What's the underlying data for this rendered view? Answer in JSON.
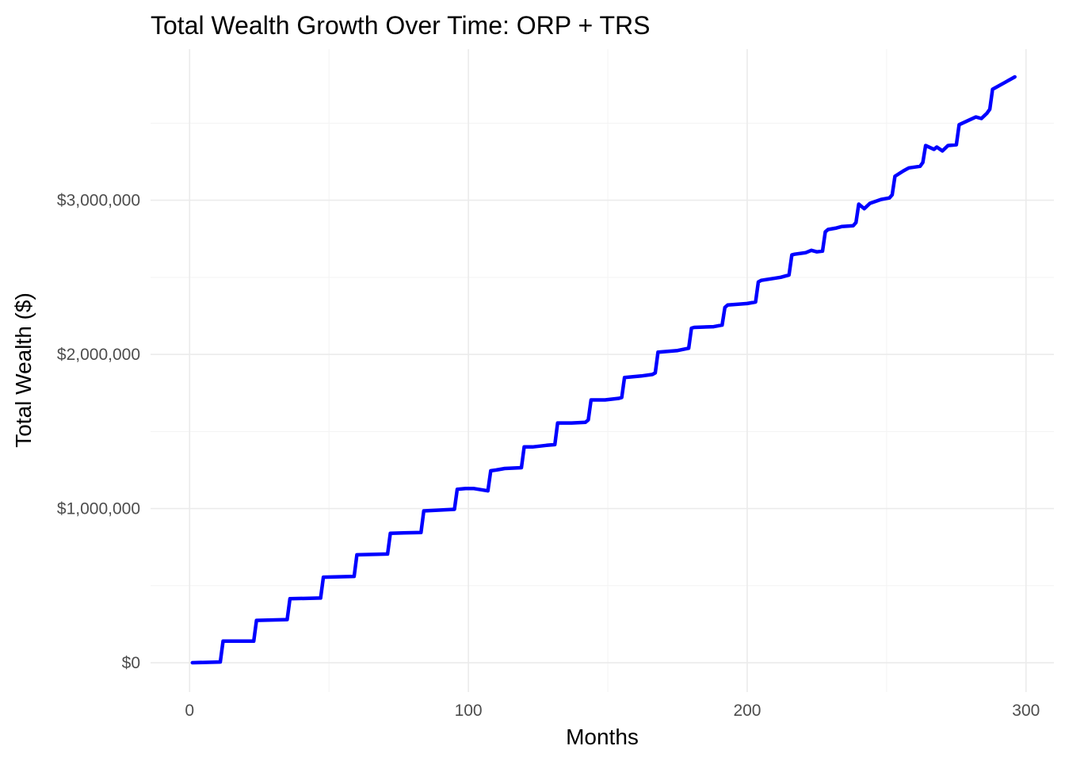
{
  "chart_data": {
    "type": "line",
    "title": "Total Wealth Growth Over Time: ORP + TRS",
    "xlabel": "Months",
    "ylabel": "Total Wealth ($)",
    "xlim": [
      -14,
      310
    ],
    "ylim": [
      -190000,
      3980000
    ],
    "x_ticks": [
      0,
      100,
      200,
      300
    ],
    "x_tick_labels": [
      "0",
      "100",
      "200",
      "300"
    ],
    "y_ticks": [
      0,
      1000000,
      2000000,
      3000000
    ],
    "y_tick_labels": [
      "$0",
      "$1,000,000",
      "$2,000,000",
      "$3,000,000"
    ],
    "grid": true,
    "legend": "none",
    "series": [
      {
        "color": "#0000ff",
        "x": [
          1,
          11,
          12,
          23,
          24,
          35,
          36,
          47,
          48,
          59,
          60,
          71,
          72,
          83,
          84,
          95,
          96,
          99,
          102,
          107,
          108,
          110,
          113,
          119,
          120,
          123,
          128,
          131,
          132,
          137,
          142,
          143,
          144,
          149,
          154,
          155,
          156,
          162,
          166,
          167,
          168,
          175,
          179,
          180,
          181,
          188,
          191,
          192,
          193,
          200,
          203,
          204,
          205,
          212,
          215,
          216,
          217,
          221,
          223,
          225,
          227,
          228,
          229,
          232,
          234,
          238,
          239,
          240,
          242,
          244,
          248,
          251,
          252,
          253,
          256,
          258,
          262,
          263,
          264,
          267,
          268,
          270,
          272,
          275,
          276,
          279,
          282,
          284,
          286,
          287,
          288,
          292,
          296
        ],
        "y": [
          0,
          5000,
          140000,
          140000,
          275000,
          280000,
          415000,
          420000,
          555000,
          560000,
          700000,
          705000,
          840000,
          845000,
          985000,
          995000,
          1125000,
          1130000,
          1130000,
          1115000,
          1245000,
          1250000,
          1260000,
          1265000,
          1400000,
          1400000,
          1410000,
          1415000,
          1555000,
          1555000,
          1560000,
          1575000,
          1705000,
          1705000,
          1715000,
          1720000,
          1850000,
          1860000,
          1870000,
          1880000,
          2015000,
          2025000,
          2040000,
          2170000,
          2175000,
          2180000,
          2190000,
          2305000,
          2320000,
          2330000,
          2340000,
          2470000,
          2480000,
          2500000,
          2515000,
          2645000,
          2650000,
          2660000,
          2675000,
          2665000,
          2670000,
          2795000,
          2810000,
          2820000,
          2830000,
          2835000,
          2855000,
          2975000,
          2945000,
          2980000,
          3005000,
          3015000,
          3035000,
          3155000,
          3190000,
          3210000,
          3220000,
          3245000,
          3355000,
          3330000,
          3345000,
          3320000,
          3355000,
          3360000,
          3490000,
          3515000,
          3540000,
          3530000,
          3565000,
          3590000,
          3720000,
          3760000,
          3800000
        ]
      }
    ]
  }
}
